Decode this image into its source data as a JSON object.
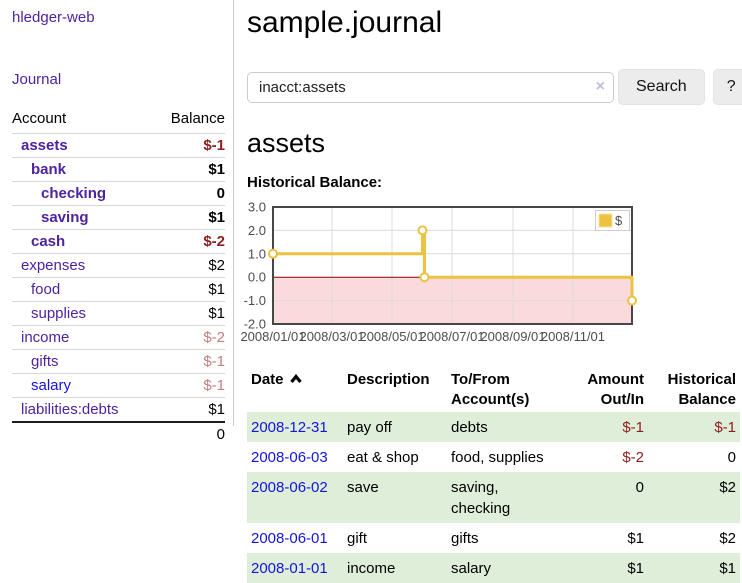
{
  "app": {
    "title": "hledger-web"
  },
  "nav": {
    "journal_label": "Journal"
  },
  "sidebar": {
    "header": {
      "account": "Account",
      "balance": "Balance"
    },
    "accounts": [
      {
        "name": "assets",
        "balance": "$-1",
        "indent": 1
      },
      {
        "name": "bank",
        "balance": "$1",
        "indent": 2
      },
      {
        "name": "checking",
        "balance": "0",
        "indent": 3
      },
      {
        "name": "saving",
        "balance": "$1",
        "indent": 3
      },
      {
        "name": "cash",
        "balance": "$-2",
        "indent": 2
      },
      {
        "name": "expenses",
        "balance": "$2",
        "indent": 1
      },
      {
        "name": "food",
        "balance": "$1",
        "indent": 2
      },
      {
        "name": "supplies",
        "balance": "$1",
        "indent": 2
      },
      {
        "name": "income",
        "balance": "$-2",
        "indent": 1
      },
      {
        "name": "gifts",
        "balance": "$-1",
        "indent": 2
      },
      {
        "name": "salary",
        "balance": "$-1",
        "indent": 2
      },
      {
        "name": "liabilities:debts",
        "balance": "$1",
        "indent": 1
      }
    ],
    "total": "0"
  },
  "header": {
    "title": "sample.journal"
  },
  "search": {
    "value": "inacct:assets",
    "clear_icon": "×",
    "button_label": "Search",
    "help_label": "?"
  },
  "account_page": {
    "title": "assets",
    "chart_label": "Historical Balance:"
  },
  "chart_data": {
    "type": "line",
    "step": true,
    "title": "Historical Balance:",
    "x_range": [
      "2008-01-01",
      "2008-12-31"
    ],
    "x_ticks": [
      "2008/01/01",
      "2008/03/01",
      "2008/05/01",
      "2008/07/01",
      "2008/09/01",
      "2008/11/01"
    ],
    "y_ticks": [
      3.0,
      2.0,
      1.0,
      0.0,
      -1.0,
      -2.0
    ],
    "ylim": [
      -2.0,
      3.0
    ],
    "grid": true,
    "legend_position": "top-right",
    "series": [
      {
        "name": "$",
        "color": "#edc240",
        "points": [
          {
            "date": "2008-01-01",
            "value": 1
          },
          {
            "date": "2008-06-01",
            "value": 2
          },
          {
            "date": "2008-06-03",
            "value": 0
          },
          {
            "date": "2008-12-31",
            "value": -1
          }
        ]
      }
    ],
    "colors": {
      "grid": "#dcdcdc",
      "border": "#474747",
      "zero_line": "#8b0000",
      "negative_region": "#fadada",
      "legend_bg": "#ffffff",
      "legend_border": "#cccccc"
    }
  },
  "register": {
    "columns": [
      "Date",
      "Description",
      "To/From Account(s)",
      "Amount Out/In",
      "Historical Balance"
    ],
    "rows": [
      {
        "date": "2008-12-31",
        "description": "pay off",
        "accounts": "debts",
        "amount": "$-1",
        "balance": "$-1"
      },
      {
        "date": "2008-06-03",
        "description": "eat & shop",
        "accounts": "food, supplies",
        "amount": "$-2",
        "balance": "0"
      },
      {
        "date": "2008-06-02",
        "description": "save",
        "accounts": "saving, checking",
        "amount": "0",
        "balance": "$2"
      },
      {
        "date": "2008-06-01",
        "description": "gift",
        "accounts": "gifts",
        "amount": "$1",
        "balance": "$2"
      },
      {
        "date": "2008-01-01",
        "description": "income",
        "accounts": "salary",
        "amount": "$1",
        "balance": "$1"
      }
    ]
  },
  "colors": {
    "link_purple": "#4e22a0",
    "link_blue": "#1414dd",
    "negative_strong": "#8f1d1d",
    "negative_soft": "#c4807e",
    "row_stripe_green": "#dfeed9",
    "chart_line_gold": "#edc240",
    "button_bg": "#ececec"
  }
}
